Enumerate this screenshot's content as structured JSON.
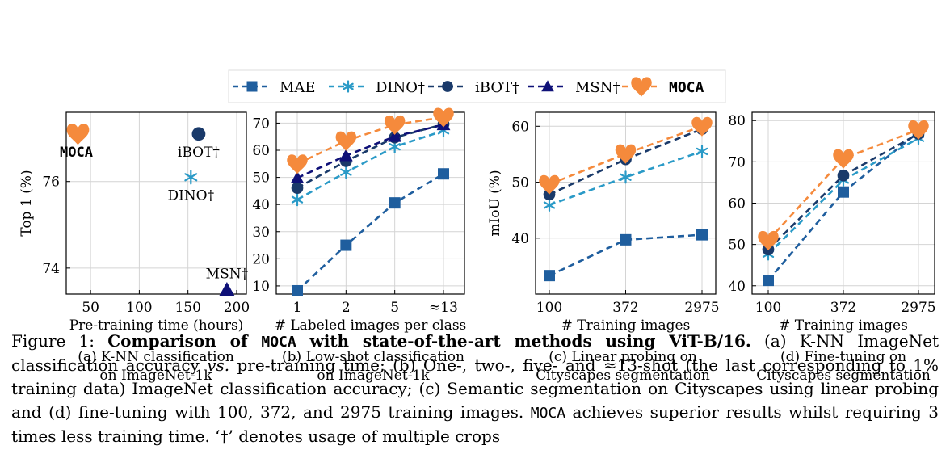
{
  "colors": {
    "MAE": "#1f5e9e",
    "DINO†": "#2a9ac7",
    "iBOT†": "#1a3a6a",
    "MSN†": "#0f1178",
    "MOCA": "#f58a3c",
    "MOCA_mid": "#5a3a9a"
  },
  "legend": [
    {
      "name": "MAE",
      "marker": "square",
      "color_key": "MAE"
    },
    {
      "name": "DINO†",
      "marker": "star",
      "color_key": "DINO†"
    },
    {
      "name": "iBOT†",
      "marker": "circle",
      "color_key": "iBOT†"
    },
    {
      "name": "MSN†",
      "marker": "triangle",
      "color_key": "MSN†"
    },
    {
      "name": "MOCA",
      "marker": "heart",
      "color_key": "MOCA"
    }
  ],
  "subcaptions": {
    "a": [
      "(a) K-NN classification",
      "on ImageNet-1k"
    ],
    "b": [
      "(b) Low-shot classification",
      "on ImageNet-1k"
    ],
    "c": [
      "(c) Linear probing on",
      "Cityscapes segmentation"
    ],
    "d": [
      "(d) Fine-tuning on",
      "Cityscapes segmentation"
    ]
  },
  "caption": {
    "figure_label": "Figure 1:",
    "bold_a": "Comparison of ",
    "bold_mono": "MOCA",
    "bold_b": " with state-of-the-art methods using ViT-B/16.",
    "text_1": " (a) K-NN ImageNet classification accuracy ",
    "vs": "vs.",
    "text_2": " pre-training time; (b) One-, two-, five- and ≈13-shot (the last corresponding to 1% training data) ImageNet classification accuracy; (c) Semantic segmentation on Cityscapes using linear probing and (d) fine-tuning with 100, 372, and 2975 training images. ",
    "mono_2": "MOCA",
    "text_3": " achieves superior results whilst requiring 3 times less training time. ‘†’ denotes usage of multiple crops"
  },
  "chart_data": [
    {
      "type": "scatter",
      "xlabel": "Pre-training time (hours)",
      "ylabel": "Top 1 (%)",
      "xlim": [
        25,
        210
      ],
      "ylim": [
        73.4,
        77.6
      ],
      "xticks": [
        50,
        100,
        150,
        200
      ],
      "yticks": [
        74,
        76
      ],
      "grid": true,
      "points": [
        {
          "name": "MOCA",
          "x": 37,
          "y": 77.1,
          "label": "MOCA",
          "label_pos": "below"
        },
        {
          "name": "iBOT†",
          "x": 161,
          "y": 77.1,
          "label": "iBOT†",
          "label_pos": "below"
        },
        {
          "name": "DINO†",
          "x": 153,
          "y": 76.1,
          "label": "DINO†",
          "label_pos": "below"
        },
        {
          "name": "MSN†",
          "x": 190,
          "y": 73.5,
          "label": "MSN†",
          "label_pos": "above"
        }
      ]
    },
    {
      "type": "line",
      "xlabel": "# Labeled images per class",
      "ylabel": "",
      "categories": [
        "1",
        "2",
        "5",
        "≈13"
      ],
      "ylim": [
        7,
        74
      ],
      "yticks": [
        10,
        20,
        30,
        40,
        50,
        60,
        70
      ],
      "grid": true,
      "series": [
        {
          "name": "MAE",
          "values": [
            8.2,
            25.0,
            40.6,
            51.3
          ]
        },
        {
          "name": "DINO†",
          "values": [
            41.8,
            51.9,
            61.3,
            67.2
          ]
        },
        {
          "name": "iBOT†",
          "values": [
            46.1,
            56.0,
            64.7,
            69.6
          ]
        },
        {
          "name": "MSN†",
          "values": [
            49.8,
            58.0,
            65.1,
            69.4
          ]
        },
        {
          "name": "MOCA",
          "values": [
            55.0,
            63.5,
            69.4,
            72.2
          ]
        }
      ]
    },
    {
      "type": "line",
      "xlabel": "# Training images",
      "ylabel": "mIoU (%)",
      "categories": [
        "100",
        "372",
        "2975"
      ],
      "ylim": [
        30,
        62.5
      ],
      "yticks": [
        40,
        50,
        60
      ],
      "grid": true,
      "series": [
        {
          "name": "MAE",
          "values": [
            33.3,
            39.7,
            40.6
          ]
        },
        {
          "name": "DINO†",
          "values": [
            45.9,
            50.9,
            55.5
          ]
        },
        {
          "name": "iBOT†",
          "values": [
            47.8,
            54.1,
            59.5
          ]
        },
        {
          "name": "MOCA",
          "values": [
            49.6,
            55.1,
            60.0
          ]
        }
      ]
    },
    {
      "type": "line",
      "xlabel": "# Training images",
      "ylabel": "",
      "categories": [
        "100",
        "372",
        "2975"
      ],
      "ylim": [
        38,
        82
      ],
      "yticks": [
        40,
        50,
        60,
        70,
        80
      ],
      "grid": true,
      "series": [
        {
          "name": "MAE",
          "values": [
            41.3,
            62.7,
            77.2
          ]
        },
        {
          "name": "DINO†",
          "values": [
            47.7,
            65.6,
            75.7
          ]
        },
        {
          "name": "iBOT†",
          "values": [
            48.8,
            66.7,
            76.8
          ]
        },
        {
          "name": "MOCA",
          "values": [
            51.0,
            70.8,
            77.8
          ]
        }
      ]
    }
  ]
}
